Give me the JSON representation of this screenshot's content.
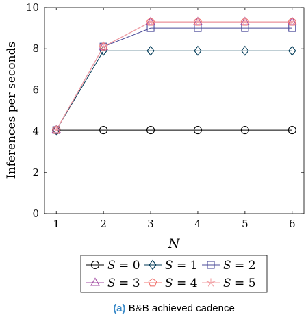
{
  "chart_data": {
    "type": "line",
    "x": [
      1,
      2,
      3,
      4,
      5,
      6
    ],
    "xlabel": "N",
    "ylabel": "Inferences per seconds",
    "xlim": [
      0.75,
      6.25
    ],
    "ylim": [
      0,
      10
    ],
    "xticks": [
      1,
      2,
      3,
      4,
      5,
      6
    ],
    "yticks": [
      0,
      2,
      4,
      6,
      8,
      10
    ],
    "grid": false,
    "legend_position": "bottom",
    "series": [
      {
        "name": "S = 0",
        "label_var": "S",
        "label_val": "0",
        "color": "#000000",
        "marker": "circle",
        "values": [
          4.05,
          4.05,
          4.05,
          4.05,
          4.05,
          4.05
        ]
      },
      {
        "name": "S = 1",
        "label_var": "S",
        "label_val": "1",
        "color": "#003a57",
        "marker": "diamond",
        "values": [
          4.05,
          7.9,
          7.9,
          7.9,
          7.9,
          7.9
        ]
      },
      {
        "name": "S = 2",
        "label_var": "S",
        "label_val": "2",
        "color": "#4b4b99",
        "marker": "square",
        "values": [
          4.05,
          8.1,
          9.0,
          9.0,
          9.0,
          9.0
        ]
      },
      {
        "name": "S = 3",
        "label_var": "S",
        "label_val": "3",
        "color": "#a24ba2",
        "marker": "triangle",
        "values": [
          4.05,
          8.1,
          9.3,
          9.3,
          9.3,
          9.3
        ]
      },
      {
        "name": "S = 4",
        "label_var": "S",
        "label_val": "4",
        "color": "#f07570",
        "marker": "pentagon",
        "values": [
          4.05,
          8.1,
          9.3,
          9.3,
          9.3,
          9.3
        ]
      },
      {
        "name": "S = 5",
        "label_var": "S",
        "label_val": "5",
        "color": "#f2a0a4",
        "marker": "star",
        "values": [
          4.05,
          8.1,
          9.3,
          9.3,
          9.3,
          9.3
        ]
      }
    ]
  },
  "caption": {
    "tag": "(a)",
    "text": "B&B achieved cadence",
    "tag_color": "#3a8ac8"
  }
}
